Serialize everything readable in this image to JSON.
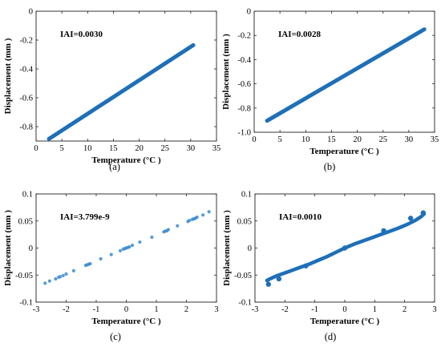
{
  "chart_data": [
    {
      "type": "scatter",
      "caption": "(a)",
      "annotation": "IAI=0.0030",
      "xlabel": "Temperature (°C )",
      "ylabel": "Displacement (mm )",
      "xlim": [
        0,
        35
      ],
      "ylim": [
        -0.9,
        0
      ],
      "xticks": [
        "0",
        "5",
        "10",
        "15",
        "20",
        "25",
        "30",
        "35"
      ],
      "yticks": [
        "0",
        "-0.2",
        "-0.4",
        "-0.6",
        "-0.8"
      ],
      "color": "#1f6fb8",
      "line": {
        "x": [
          2.5,
          30.5
        ],
        "y": [
          -0.885,
          -0.235
        ]
      }
    },
    {
      "type": "scatter",
      "caption": "(b)",
      "annotation": "IAI=0.0028",
      "xlabel": "Temperature (°C )",
      "ylabel": "Displacement (mm )",
      "xlim": [
        0,
        35
      ],
      "ylim": [
        -1.0,
        0
      ],
      "xticks": [
        "0",
        "5",
        "10",
        "15",
        "20",
        "25",
        "30",
        "35"
      ],
      "yticks": [
        "0",
        "-0.2",
        "-0.4",
        "-0.6",
        "-0.8",
        "-1.0"
      ],
      "color": "#1f6fb8",
      "line": {
        "x": [
          2.5,
          33
        ],
        "y": [
          -0.905,
          -0.15
        ]
      }
    },
    {
      "type": "scatter",
      "caption": "(c)",
      "annotation": "IAI=3.799e-9",
      "xlabel": "Temperature (°C )",
      "ylabel": "Displacement (mm )",
      "xlim": [
        -3,
        3
      ],
      "ylim": [
        -0.1,
        0.1
      ],
      "xticks": [
        "-3",
        "-2",
        "-1",
        "0",
        "1",
        "2",
        "3"
      ],
      "yticks": [
        "0.1",
        "0.05",
        "0",
        "-0.05",
        "-0.1"
      ],
      "color": "#3a8ad2",
      "points": {
        "x": [
          -2.7,
          -2.55,
          -2.35,
          -2.25,
          -2.2,
          -2.1,
          -2.0,
          -1.75,
          -1.35,
          -1.3,
          -1.25,
          -1.2,
          -0.85,
          -0.5,
          -0.2,
          -0.1,
          -0.05,
          0.0,
          0.05,
          0.1,
          0.2,
          0.45,
          0.85,
          1.25,
          1.3,
          1.35,
          1.4,
          1.7,
          2.05,
          2.1,
          2.2,
          2.25,
          2.3,
          2.35,
          2.55,
          2.75
        ],
        "y": [
          -0.065,
          -0.061,
          -0.057,
          -0.054,
          -0.053,
          -0.051,
          -0.048,
          -0.042,
          -0.032,
          -0.031,
          -0.03,
          -0.029,
          -0.02,
          -0.012,
          -0.005,
          -0.002,
          -0.001,
          0.0,
          0.001,
          0.002,
          0.005,
          0.011,
          0.02,
          0.03,
          0.031,
          0.032,
          0.034,
          0.041,
          0.049,
          0.051,
          0.053,
          0.054,
          0.055,
          0.057,
          0.061,
          0.067
        ]
      }
    },
    {
      "type": "scatter",
      "caption": "(d)",
      "annotation": "IAI=0.0010",
      "xlabel": "Temperature (°C )",
      "ylabel": "Displacement (mm )",
      "xlim": [
        -3,
        3
      ],
      "ylim": [
        -0.1,
        0.1
      ],
      "xticks": [
        "-3",
        "-2",
        "-1",
        "0",
        "1",
        "2",
        "3"
      ],
      "yticks": [
        "0.1",
        "0.05",
        "0",
        "-0.05",
        "-0.1"
      ],
      "color": "#1f6fb8",
      "curve": {
        "x": [
          -2.6,
          -2.5,
          -2.3,
          -2.1,
          -1.8,
          -1.5,
          -1.2,
          -0.9,
          -0.6,
          -0.3,
          0.0,
          0.3,
          0.6,
          0.9,
          1.2,
          1.5,
          1.8,
          2.1,
          2.35,
          2.55,
          2.65
        ],
        "y": [
          -0.06,
          -0.057,
          -0.052,
          -0.048,
          -0.042,
          -0.036,
          -0.03,
          -0.023,
          -0.016,
          -0.008,
          0.0,
          0.007,
          0.013,
          0.019,
          0.025,
          0.031,
          0.037,
          0.044,
          0.051,
          0.058,
          0.063
        ]
      },
      "points": {
        "x": [
          -2.55,
          -2.2,
          -1.3,
          0.0,
          1.3,
          2.2,
          2.62
        ],
        "y": [
          -0.067,
          -0.057,
          -0.033,
          0.0,
          0.032,
          0.055,
          0.065
        ]
      }
    }
  ]
}
